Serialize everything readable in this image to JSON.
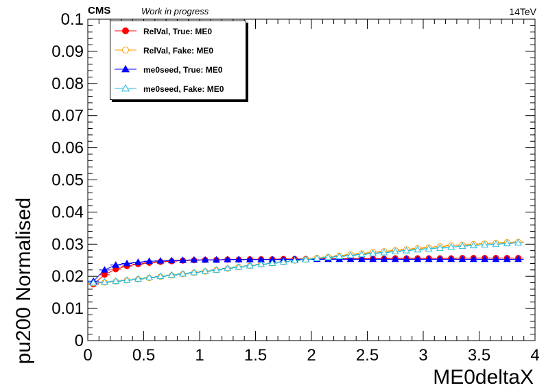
{
  "header": {
    "experiment": "CMS",
    "status": "Work in progress",
    "energy": "14TeV"
  },
  "chart_data": {
    "type": "line",
    "xlabel": "ME0deltaX",
    "ylabel": "pu200 Normalised",
    "xlim": [
      0,
      4
    ],
    "ylim": [
      0,
      0.1
    ],
    "x_ticks": [
      "0",
      "0.5",
      "1",
      "1.5",
      "2",
      "2.5",
      "3",
      "3.5",
      "4"
    ],
    "y_ticks": [
      "0",
      "0.01",
      "0.02",
      "0.03",
      "0.04",
      "0.05",
      "0.06",
      "0.07",
      "0.08",
      "0.09",
      "0.1"
    ],
    "grid": false,
    "legend_position": "top-left",
    "x": [
      0.05,
      0.15,
      0.25,
      0.35,
      0.45,
      0.55,
      0.65,
      0.75,
      0.85,
      0.95,
      1.05,
      1.15,
      1.25,
      1.35,
      1.45,
      1.55,
      1.65,
      1.75,
      1.85,
      1.95,
      2.05,
      2.15,
      2.25,
      2.35,
      2.45,
      2.55,
      2.65,
      2.75,
      2.85,
      2.95,
      3.05,
      3.15,
      3.25,
      3.35,
      3.45,
      3.55,
      3.65,
      3.75,
      3.85
    ],
    "series": [
      {
        "name": "RelVal, True: ME0",
        "color": "#ff0000",
        "marker": "filled-circle",
        "values": [
          0.0175,
          0.0205,
          0.0222,
          0.0232,
          0.0238,
          0.0242,
          0.0245,
          0.0247,
          0.0249,
          0.025,
          0.0251,
          0.0251,
          0.0252,
          0.0252,
          0.0253,
          0.0253,
          0.0253,
          0.0254,
          0.0254,
          0.0254,
          0.0254,
          0.0255,
          0.0255,
          0.0255,
          0.0255,
          0.0255,
          0.0255,
          0.0256,
          0.0256,
          0.0256,
          0.0256,
          0.0256,
          0.0256,
          0.0257,
          0.0257,
          0.0257,
          0.0257,
          0.0257,
          0.0257
        ]
      },
      {
        "name": "RelVal, Fake: ME0",
        "color": "#ff9900",
        "marker": "open-circle",
        "values": [
          0.0178,
          0.0181,
          0.0184,
          0.0188,
          0.0191,
          0.0195,
          0.0199,
          0.0203,
          0.0207,
          0.0211,
          0.0215,
          0.022,
          0.0224,
          0.0229,
          0.0233,
          0.0237,
          0.0241,
          0.0245,
          0.0249,
          0.0253,
          0.0257,
          0.026,
          0.0264,
          0.0268,
          0.0271,
          0.0275,
          0.0278,
          0.0281,
          0.0284,
          0.0287,
          0.029,
          0.0293,
          0.0296,
          0.0298,
          0.03,
          0.0302,
          0.0304,
          0.0306,
          0.0307
        ]
      },
      {
        "name": "me0seed, True: ME0",
        "color": "#0000ff",
        "marker": "filled-triangle",
        "values": [
          0.0185,
          0.022,
          0.0235,
          0.024,
          0.0244,
          0.0247,
          0.0248,
          0.0249,
          0.025,
          0.0251,
          0.0251,
          0.0251,
          0.0252,
          0.0252,
          0.0252,
          0.0252,
          0.0252,
          0.0252,
          0.0253,
          0.0253,
          0.0253,
          0.0253,
          0.0253,
          0.0253,
          0.0253,
          0.0253,
          0.0253,
          0.0253,
          0.0253,
          0.0253,
          0.0253,
          0.0253,
          0.0253,
          0.0253,
          0.0253,
          0.0253,
          0.0253,
          0.0253,
          0.0253
        ]
      },
      {
        "name": "me0seed, Fake: ME0",
        "color": "#22bbdd",
        "marker": "open-triangle",
        "values": [
          0.018,
          0.0182,
          0.0185,
          0.0188,
          0.0192,
          0.0196,
          0.02,
          0.0204,
          0.0208,
          0.0212,
          0.0216,
          0.022,
          0.0225,
          0.0229,
          0.0233,
          0.0237,
          0.0241,
          0.0245,
          0.0249,
          0.0252,
          0.0256,
          0.0259,
          0.0262,
          0.0265,
          0.0268,
          0.0271,
          0.0274,
          0.0277,
          0.028,
          0.0283,
          0.0286,
          0.0288,
          0.0291,
          0.0294,
          0.0296,
          0.0298,
          0.03,
          0.0302,
          0.0304
        ]
      }
    ]
  }
}
